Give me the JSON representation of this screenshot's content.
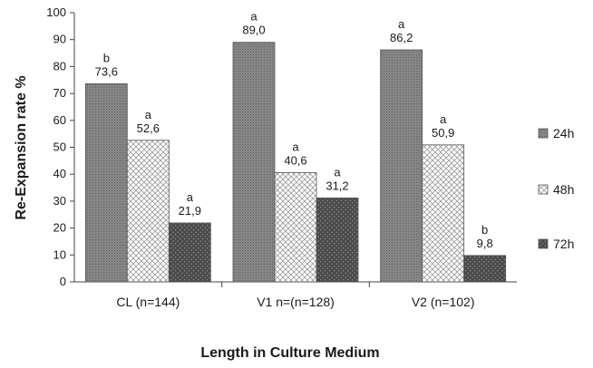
{
  "chart_data": {
    "type": "bar",
    "title": "",
    "xlabel": "Length in Culture Medium",
    "ylabel": "Re-Expansion rate %",
    "ylim": [
      0,
      100
    ],
    "yticks": [
      "0",
      "10",
      "20",
      "30",
      "40",
      "50",
      "60",
      "70",
      "80",
      "90",
      "100"
    ],
    "categories": [
      "CL (n=144)",
      "V1 n=(n=128)",
      "V2 (n=102)"
    ],
    "grid": false,
    "legend_position": "right",
    "series": [
      {
        "name": "24h",
        "values": [
          73.6,
          89.0,
          86.2
        ],
        "labels": [
          "73,6",
          "89,0",
          "86,2"
        ],
        "significance": [
          "b",
          "a",
          "a"
        ],
        "color": "#7a7a7a"
      },
      {
        "name": "48h",
        "values": [
          52.6,
          40.6,
          50.9
        ],
        "labels": [
          "52,6",
          "40,6",
          "50,9"
        ],
        "significance": [
          "a",
          "a",
          "a"
        ],
        "color": "#f4f4f4"
      },
      {
        "name": "72h",
        "values": [
          21.9,
          31.2,
          9.8
        ],
        "labels": [
          "21,9",
          "31,2",
          "9,8"
        ],
        "significance": [
          "a",
          "a",
          "b"
        ],
        "color": "#555555"
      }
    ]
  }
}
